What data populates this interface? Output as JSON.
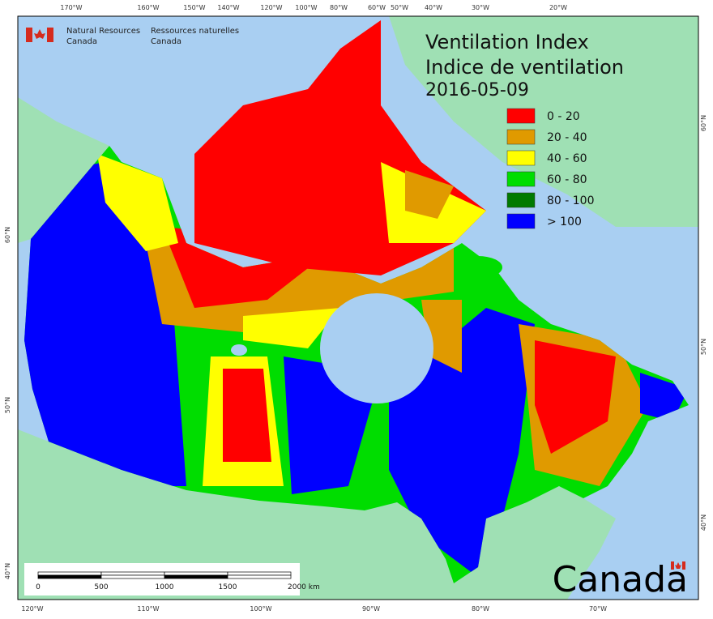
{
  "agency": {
    "en": [
      "Natural Resources",
      "Canada"
    ],
    "fr": [
      "Ressources naturelles",
      "Canada"
    ]
  },
  "title": [
    "Ventilation Index",
    "Indice de ventilation"
  ],
  "date": "2016-05-09",
  "legend": [
    {
      "label": "0 - 20",
      "color": "#ff0000"
    },
    {
      "label": "20 - 40",
      "color": "#e09a00"
    },
    {
      "label": "40 - 60",
      "color": "#ffff00"
    },
    {
      "label": "60 - 80",
      "color": "#00dd00"
    },
    {
      "label": "80 - 100",
      "color": "#007a00"
    },
    {
      "label": "> 100",
      "color": "#0000ff"
    }
  ],
  "graticule": {
    "top": [
      "170°W",
      "160°W",
      "150°W",
      "140°W",
      "120°W",
      "100°W",
      "80°W",
      "60°W",
      "50°W",
      "40°W",
      "30°W",
      "20°W"
    ],
    "bottom": [
      "120°W",
      "110°W",
      "100°W",
      "90°W",
      "80°W",
      "70°W"
    ],
    "left": [
      "60°N",
      "50°N",
      "40°N"
    ],
    "right": [
      "60°N",
      "50°N",
      "40°N"
    ]
  },
  "scale": [
    "0",
    "500",
    "1000",
    "1500",
    "2000 km"
  ],
  "wordmark": "Canada"
}
